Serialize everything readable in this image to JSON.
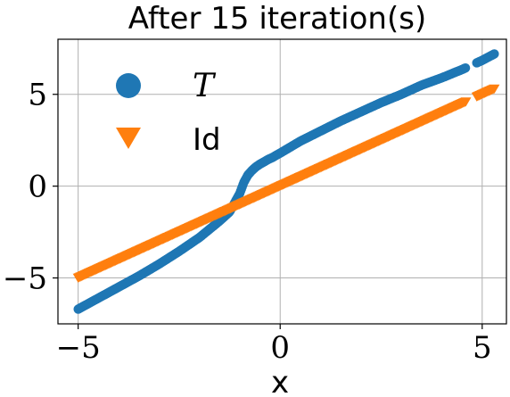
{
  "chart_data": {
    "type": "scatter",
    "title": "After 15 iteration(s)",
    "xlabel": "x",
    "ylabel": "",
    "xlim": [
      -5.5,
      5.6
    ],
    "ylim": [
      -7.5,
      8.0
    ],
    "xticks": [
      -5,
      0,
      5
    ],
    "yticks": [
      -5,
      0,
      5
    ],
    "xtick_labels": [
      "−5",
      "0",
      "5"
    ],
    "ytick_labels": [
      "−5",
      "0",
      "5"
    ],
    "grid": true,
    "legend_position": "top-left",
    "series": [
      {
        "name": "T",
        "marker": "circle",
        "color": "#1f77b4",
        "x": [
          -5.0,
          -4.5,
          -4.0,
          -3.5,
          -3.0,
          -2.5,
          -2.0,
          -1.5,
          -1.25,
          -1.0,
          -0.9,
          -0.8,
          -0.7,
          -0.6,
          -0.5,
          -0.4,
          -0.3,
          -0.2,
          0.0,
          0.5,
          1.0,
          1.5,
          2.0,
          2.5,
          3.0,
          3.5,
          4.0,
          4.5,
          5.0,
          5.3
        ],
        "y": [
          -6.7,
          -6.1,
          -5.5,
          -4.9,
          -4.25,
          -3.55,
          -2.8,
          -1.9,
          -1.4,
          -0.4,
          0.2,
          0.6,
          0.85,
          1.05,
          1.2,
          1.32,
          1.45,
          1.55,
          1.8,
          2.45,
          3.0,
          3.55,
          4.05,
          4.55,
          5.0,
          5.5,
          5.9,
          6.35,
          6.85,
          7.2
        ]
      },
      {
        "name": "Id",
        "marker": "triangle-down",
        "color": "#ff7f0e",
        "x": [
          -5.0,
          5.3
        ],
        "y": [
          -5.0,
          5.3
        ]
      }
    ]
  }
}
